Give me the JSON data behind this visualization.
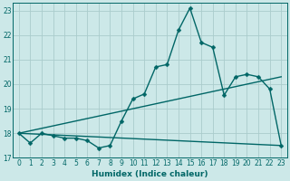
{
  "title": "",
  "xlabel": "Humidex (Indice chaleur)",
  "background_color": "#cce8e8",
  "grid_color": "#aacccc",
  "line_color": "#006666",
  "xlim": [
    -0.5,
    23.5
  ],
  "ylim": [
    17,
    23.3
  ],
  "yticks": [
    17,
    18,
    19,
    20,
    21,
    22,
    23
  ],
  "xticks": [
    0,
    1,
    2,
    3,
    4,
    5,
    6,
    7,
    8,
    9,
    10,
    11,
    12,
    13,
    14,
    15,
    16,
    17,
    18,
    19,
    20,
    21,
    22,
    23
  ],
  "curve1_x": [
    0,
    1,
    2,
    3,
    4,
    5,
    6,
    7,
    8,
    9,
    10,
    11,
    12,
    13,
    14,
    15,
    16,
    17,
    18,
    19,
    20,
    21,
    22,
    23
  ],
  "curve1_y": [
    18.0,
    17.6,
    18.0,
    17.9,
    17.8,
    17.8,
    17.7,
    17.4,
    17.5,
    18.5,
    19.4,
    19.6,
    20.7,
    20.8,
    22.2,
    23.1,
    21.7,
    21.5,
    19.55,
    20.3,
    20.4,
    20.3,
    19.8,
    17.5
  ],
  "curve2_x": [
    0,
    23
  ],
  "curve2_y": [
    18.0,
    17.5
  ],
  "curve3_x": [
    0,
    23
  ],
  "curve3_y": [
    18.0,
    20.3
  ],
  "marker_size": 2.5,
  "line_width": 1.0,
  "tick_fontsize": 5.5,
  "xlabel_fontsize": 6.5
}
